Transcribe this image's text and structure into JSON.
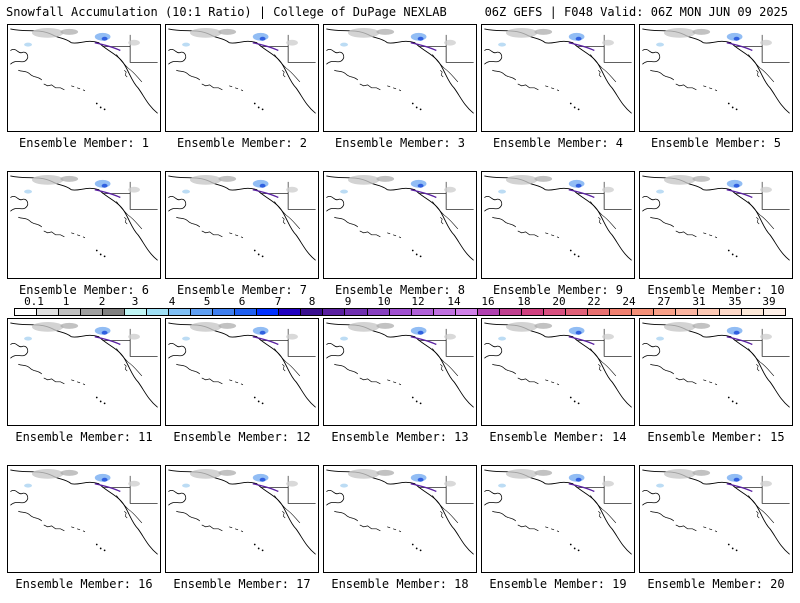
{
  "header": {
    "title": "Snowfall Accumulation (10:1 Ratio) | College of DuPage NEXLAB",
    "run_info": "06Z GEFS | F048 Valid: 06Z MON JUN 09 2025"
  },
  "panels": [
    {
      "label": "Ensemble Member: 1"
    },
    {
      "label": "Ensemble Member: 2"
    },
    {
      "label": "Ensemble Member: 3"
    },
    {
      "label": "Ensemble Member: 4"
    },
    {
      "label": "Ensemble Member: 5"
    },
    {
      "label": "Ensemble Member: 6"
    },
    {
      "label": "Ensemble Member: 7"
    },
    {
      "label": "Ensemble Member: 8"
    },
    {
      "label": "Ensemble Member: 9"
    },
    {
      "label": "Ensemble Member: 10"
    },
    {
      "label": "Ensemble Member: 11"
    },
    {
      "label": "Ensemble Member: 12"
    },
    {
      "label": "Ensemble Member: 13"
    },
    {
      "label": "Ensemble Member: 14"
    },
    {
      "label": "Ensemble Member: 15"
    },
    {
      "label": "Ensemble Member: 16"
    },
    {
      "label": "Ensemble Member: 17"
    },
    {
      "label": "Ensemble Member: 18"
    },
    {
      "label": "Ensemble Member: 19"
    },
    {
      "label": "Ensemble Member: 20",
      "selected": true
    }
  ],
  "legend": {
    "labels": [
      "0.1",
      "1",
      "2",
      "3",
      "4",
      "5",
      "6",
      "7",
      "8",
      "9",
      "10",
      "12",
      "14",
      "16",
      "18",
      "20",
      "22",
      "24",
      "27",
      "31",
      "35",
      "39"
    ],
    "colors": [
      "#ffffff",
      "#e0e0e0",
      "#c0c0c0",
      "#a0a0a0",
      "#808080",
      "#bff4f4",
      "#9fdff5",
      "#7fbff5",
      "#5f9ff2",
      "#3f7fef",
      "#1f5ff0",
      "#0030ff",
      "#2000c0",
      "#3a1090",
      "#5a20a0",
      "#7030b0",
      "#8840c0",
      "#a050d0",
      "#b060d8",
      "#c070e0",
      "#d080e8",
      "#b040b0",
      "#c04090",
      "#d04080",
      "#d85080",
      "#e06078",
      "#e87070",
      "#f08070",
      "#f49078",
      "#f8a088",
      "#fbb4a0",
      "#fcc8b4",
      "#fdd8c8",
      "#fde8d8",
      "#fef0e8"
    ]
  }
}
